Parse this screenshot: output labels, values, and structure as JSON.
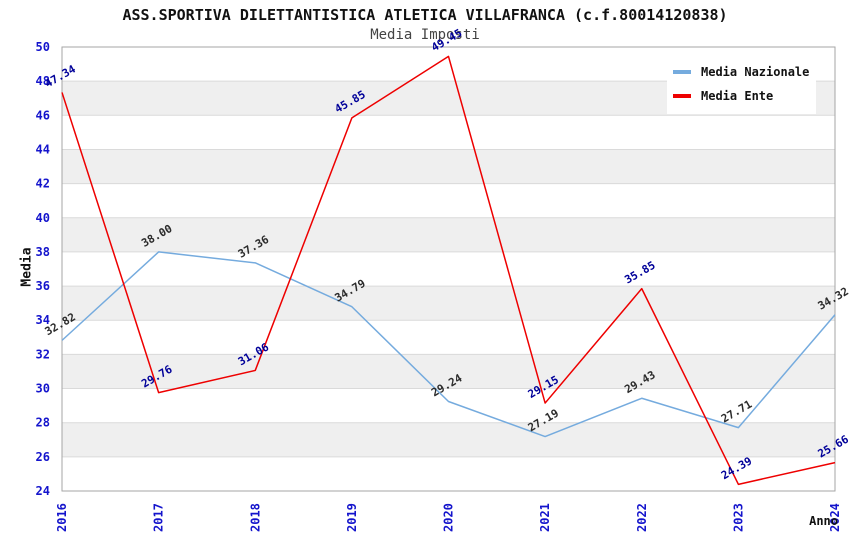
{
  "chart_data": {
    "type": "line",
    "title": "ASS.SPORTIVA DILETTANTISTICA ATLETICA VILLAFRANCA (c.f.80014120838)",
    "subtitle": "Media Imposti",
    "xlabel": "Anno",
    "ylabel": "Media",
    "categories": [
      "2016",
      "2017",
      "2018",
      "2019",
      "2020",
      "2021",
      "2022",
      "2023",
      "2024"
    ],
    "series": [
      {
        "name": "Media Nazionale",
        "color": "#75ABDE",
        "label_color": "#2b2b2b",
        "values": [
          32.82,
          38.0,
          37.36,
          34.79,
          29.24,
          27.19,
          29.43,
          27.71,
          34.32
        ]
      },
      {
        "name": "Media Ente",
        "color": "#EE0000",
        "label_color": "#000099",
        "values": [
          47.34,
          29.76,
          31.06,
          45.85,
          49.45,
          29.15,
          35.85,
          24.39,
          25.66
        ]
      }
    ],
    "ylim": [
      24,
      50
    ],
    "ytick_step": 2,
    "axis_tick_color": "#1414CC",
    "band_color": "#EFEFEF",
    "grid_color": "#DADADA",
    "border_color": "#A6A6A6",
    "grid": "horizontal bands, gridline every 2 units",
    "legend_position": "top-right",
    "data_label_format": "2 decimals, rotated -30deg above each point"
  }
}
